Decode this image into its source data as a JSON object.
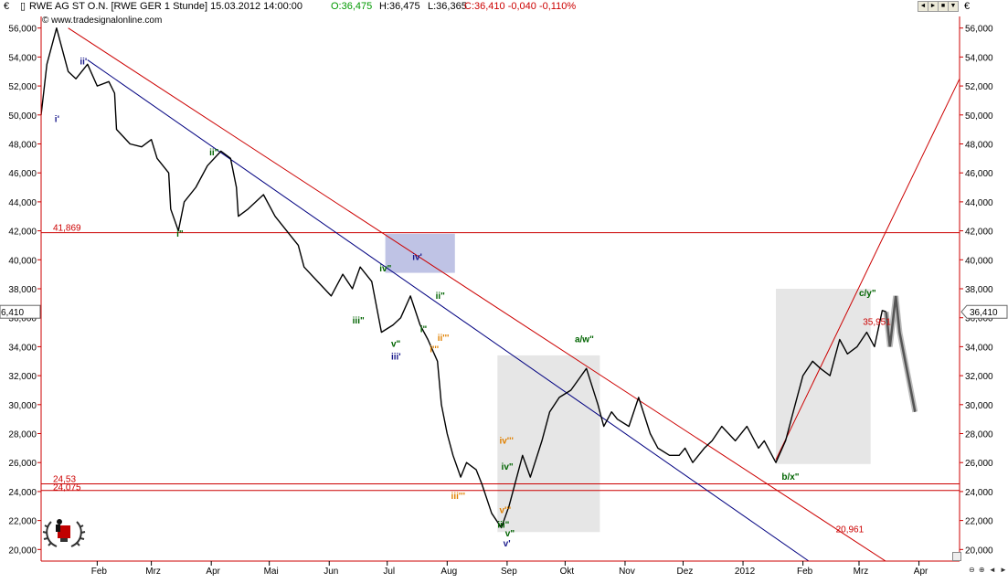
{
  "header": {
    "currency": "€",
    "instrument": "RWE AG ST O.N. [RWE GER  1 Stunde] 15.03.2012 14:00:00",
    "open": "O:36,475",
    "high": "H:36,475",
    "low": "L:36,365",
    "close": "C:36,410 -0,040 -0,110%",
    "watermark": "© www.tradesignalonline.com",
    "right_currency": "€",
    "buttons": [
      "◄",
      "►",
      "■",
      "▼"
    ]
  },
  "chart_data": {
    "type": "line",
    "title": "RWE AG ST O.N. [RWE GER  1 Stunde]",
    "xlabel": "",
    "ylabel": "",
    "y_unit": "€",
    "ylim": [
      19.2,
      56.8
    ],
    "y_ticks": [
      "20,000",
      "22,000",
      "24,000",
      "26,000",
      "28,000",
      "30,000",
      "32,000",
      "34,000",
      "36,000",
      "38,000",
      "40,000",
      "42,000",
      "44,000",
      "46,000",
      "48,000",
      "50,000",
      "52,000",
      "54,000",
      "56,000"
    ],
    "x_ticks": [
      "Feb",
      "Mrz",
      "Apr",
      "Mai",
      "Jun",
      "Jul",
      "Aug",
      "Sep",
      "Okt",
      "Nov",
      "Dez",
      "2012",
      "Feb",
      "Mrz",
      "Apr"
    ],
    "x_tick_dates": [
      "2011-02-01",
      "2011-03-01",
      "2011-04-01",
      "2011-05-01",
      "2011-06-01",
      "2011-07-01",
      "2011-08-01",
      "2011-09-01",
      "2011-10-01",
      "2011-11-01",
      "2011-12-01",
      "2012-01-01",
      "2012-02-01",
      "2012-03-01",
      "2012-04-01"
    ],
    "xlim": [
      "2011-01-03",
      "2012-04-22"
    ],
    "series": [
      {
        "name": "RWE AG ST O.N.",
        "color": "#000000",
        "x": [
          "2011-01-03",
          "2011-01-06",
          "2011-01-11",
          "2011-01-17",
          "2011-01-21",
          "2011-01-27",
          "2011-02-01",
          "2011-02-07",
          "2011-02-10",
          "2011-02-11",
          "2011-02-18",
          "2011-02-24",
          "2011-03-01",
          "2011-03-04",
          "2011-03-10",
          "2011-03-11",
          "2011-03-15",
          "2011-03-18",
          "2011-03-24",
          "2011-03-30",
          "2011-04-06",
          "2011-04-11",
          "2011-04-14",
          "2011-04-15",
          "2011-04-20",
          "2011-04-28",
          "2011-05-04",
          "2011-05-10",
          "2011-05-16",
          "2011-05-19",
          "2011-05-26",
          "2011-06-02",
          "2011-06-08",
          "2011-06-13",
          "2011-06-17",
          "2011-06-23",
          "2011-06-28",
          "2011-07-04",
          "2011-07-08",
          "2011-07-13",
          "2011-07-18",
          "2011-07-22",
          "2011-07-27",
          "2011-07-29",
          "2011-08-01",
          "2011-08-04",
          "2011-08-08",
          "2011-08-11",
          "2011-08-16",
          "2011-08-19",
          "2011-08-24",
          "2011-08-29",
          "2011-09-02",
          "2011-09-06",
          "2011-09-09",
          "2011-09-13",
          "2011-09-19",
          "2011-09-23",
          "2011-09-28",
          "2011-10-04",
          "2011-10-12",
          "2011-10-18",
          "2011-10-21",
          "2011-10-25",
          "2011-10-28",
          "2011-11-03",
          "2011-11-08",
          "2011-11-14",
          "2011-11-18",
          "2011-11-24",
          "2011-11-29",
          "2011-12-02",
          "2011-12-06",
          "2011-12-12",
          "2011-12-16",
          "2011-12-21",
          "2011-12-28",
          "2012-01-03",
          "2012-01-09",
          "2012-01-12",
          "2012-01-16",
          "2012-01-18",
          "2012-01-23",
          "2012-01-27",
          "2012-02-01",
          "2012-02-06",
          "2012-02-10",
          "2012-02-15",
          "2012-02-20",
          "2012-02-24",
          "2012-02-29",
          "2012-03-05",
          "2012-03-09",
          "2012-03-13",
          "2012-03-15"
        ],
        "y": [
          50.0,
          53.5,
          56.0,
          53.0,
          52.5,
          53.5,
          52.0,
          52.3,
          51.5,
          49.0,
          48.0,
          47.8,
          48.3,
          47.0,
          46.0,
          43.5,
          42.0,
          44.0,
          45.0,
          46.5,
          47.5,
          47.0,
          45.0,
          43.0,
          43.5,
          44.5,
          43.0,
          42.0,
          41.0,
          39.5,
          38.5,
          37.5,
          39.0,
          38.0,
          39.5,
          38.5,
          35.0,
          35.5,
          36.0,
          37.5,
          35.5,
          34.5,
          33.0,
          30.0,
          28.0,
          26.5,
          25.0,
          26.0,
          25.5,
          24.5,
          22.5,
          21.5,
          23.0,
          25.0,
          26.5,
          25.0,
          27.5,
          29.5,
          30.5,
          31.0,
          32.5,
          30.0,
          28.5,
          29.5,
          29.0,
          28.5,
          30.5,
          28.0,
          27.0,
          26.5,
          26.5,
          27.0,
          26.0,
          27.0,
          27.5,
          28.5,
          27.5,
          28.5,
          27.0,
          27.5,
          26.5,
          26.0,
          27.5,
          29.5,
          32.0,
          33.0,
          32.5,
          32.0,
          34.5,
          33.5,
          34.0,
          35.0,
          34.0,
          36.5,
          36.41
        ]
      }
    ],
    "horizontal_lines": [
      {
        "label": "41,869",
        "value": 41.869,
        "color": "#cc0000"
      },
      {
        "label": "24,53",
        "value": 24.53,
        "color": "#cc0000"
      },
      {
        "label": "24,075",
        "value": 24.075,
        "color": "#cc0000"
      }
    ],
    "trend_lines": [
      {
        "color": "#cc0000",
        "from": [
          "2011-01-17",
          56.0
        ],
        "to": [
          "2012-03-17",
          19.0
        ]
      },
      {
        "color": "#000080",
        "from": [
          "2011-01-27",
          53.8
        ],
        "to": [
          "2012-02-04",
          19.2
        ]
      },
      {
        "color": "#cc0000",
        "from": [
          "2012-01-18",
          26.2
        ],
        "to": [
          "2012-04-22",
          52.5
        ]
      }
    ],
    "trend_line_labels": [
      {
        "text": "20,961",
        "x": "2012-02-18",
        "y": 21.2,
        "color": "#cc0000"
      },
      {
        "text": "35,951",
        "x": "2012-03-03",
        "y": 35.5,
        "color": "#cc0000"
      }
    ],
    "boxes": [
      {
        "x": [
          "2011-06-30",
          "2011-08-05"
        ],
        "y": [
          39.1,
          41.8
        ],
        "color": "#b4b8e0"
      },
      {
        "x": [
          "2011-08-27",
          "2011-10-19"
        ],
        "y": [
          21.2,
          33.4
        ],
        "color": "#e2e2e2"
      },
      {
        "x": [
          "2012-01-18",
          "2012-03-07"
        ],
        "y": [
          25.9,
          38.0
        ],
        "color": "#e2e2e2"
      }
    ],
    "projection": {
      "color": "#555555",
      "x": [
        "2012-03-15",
        "2012-03-17",
        "2012-03-20",
        "2012-03-22",
        "2012-03-30"
      ],
      "y": [
        36.4,
        34.0,
        37.5,
        35.0,
        29.5
      ]
    },
    "wave_labels": [
      {
        "text": "ii'",
        "x": "2011-01-23",
        "y": 53.5,
        "color": "#1a1a8c"
      },
      {
        "text": "i'",
        "x": "2011-01-10",
        "y": 49.5,
        "color": "#1a1a8c"
      },
      {
        "text": "ii\"",
        "x": "2011-03-31",
        "y": 47.2,
        "color": "#006400"
      },
      {
        "text": "i\"",
        "x": "2011-03-14",
        "y": 41.6,
        "color": "#006400"
      },
      {
        "text": "iv'",
        "x": "2011-07-14",
        "y": 40.0,
        "color": "#1a1a8c"
      },
      {
        "text": "iv\"",
        "x": "2011-06-27",
        "y": 39.2,
        "color": "#006400"
      },
      {
        "text": "iii\"",
        "x": "2011-06-13",
        "y": 35.6,
        "color": "#006400"
      },
      {
        "text": "ii\"",
        "x": "2011-07-26",
        "y": 37.3,
        "color": "#006400"
      },
      {
        "text": "i\"",
        "x": "2011-07-18",
        "y": 35.0,
        "color": "#006400"
      },
      {
        "text": "ii'''",
        "x": "2011-07-27",
        "y": 34.4,
        "color": "#e08000"
      },
      {
        "text": "i'''",
        "x": "2011-07-23",
        "y": 33.6,
        "color": "#e08000"
      },
      {
        "text": "v\"",
        "x": "2011-07-03",
        "y": 34.0,
        "color": "#006400"
      },
      {
        "text": "iii'",
        "x": "2011-07-03",
        "y": 33.1,
        "color": "#1a1a8c"
      },
      {
        "text": "a/w\"",
        "x": "2011-10-06",
        "y": 34.3,
        "color": "#006400"
      },
      {
        "text": "iv'''",
        "x": "2011-08-28",
        "y": 27.3,
        "color": "#e08000"
      },
      {
        "text": "iv\"",
        "x": "2011-08-29",
        "y": 25.5,
        "color": "#006400"
      },
      {
        "text": "iii'''",
        "x": "2011-08-03",
        "y": 23.5,
        "color": "#e08000"
      },
      {
        "text": "v'''",
        "x": "2011-08-28",
        "y": 22.5,
        "color": "#e08000"
      },
      {
        "text": "iii\"",
        "x": "2011-08-27",
        "y": 21.5,
        "color": "#006400"
      },
      {
        "text": "v\"",
        "x": "2011-08-31",
        "y": 20.9,
        "color": "#006400"
      },
      {
        "text": "v'",
        "x": "2011-08-30",
        "y": 20.2,
        "color": "#1a1a8c"
      },
      {
        "text": "c/y\"",
        "x": "2012-03-01",
        "y": 37.5,
        "color": "#006400"
      },
      {
        "text": "b/x\"",
        "x": "2012-01-21",
        "y": 24.8,
        "color": "#006400"
      }
    ],
    "last_value": "36,410",
    "last_value_left": "6,410",
    "grid": false
  },
  "colors": {
    "axis": "#cc0000",
    "price": "#000000",
    "background": "#ffffff",
    "header_green": "#009900",
    "header_red": "#cc0000"
  },
  "logo": {
    "name": "trophy-logo"
  }
}
